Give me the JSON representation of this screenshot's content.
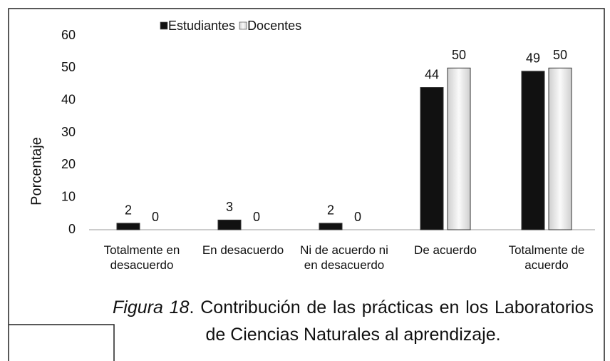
{
  "chart_data": {
    "type": "bar",
    "legend": "top",
    "y_label": "Porcentaje",
    "categories": [
      "Totalmente en desacuerdo",
      "En desacuerdo",
      "Ni de acuerdo ni en desacuerdo",
      "De acuerdo",
      "Totalmente de acuerdo"
    ],
    "series": [
      {
        "name": "Estudiantes",
        "color": "#111111",
        "values": [
          2,
          3,
          2,
          44,
          49
        ]
      },
      {
        "name": "Docentes",
        "color": "#e6e6e6",
        "values": [
          0,
          0,
          0,
          50,
          50
        ]
      }
    ],
    "ylim": [
      0,
      60
    ],
    "yticks": [
      0,
      10,
      20,
      30,
      40,
      50,
      60
    ],
    "grid": false,
    "caption_label": "Figura 18",
    "caption": ". Contribución de las prácticas en los Laboratorios de Ciencias Naturales al aprendizaje."
  }
}
